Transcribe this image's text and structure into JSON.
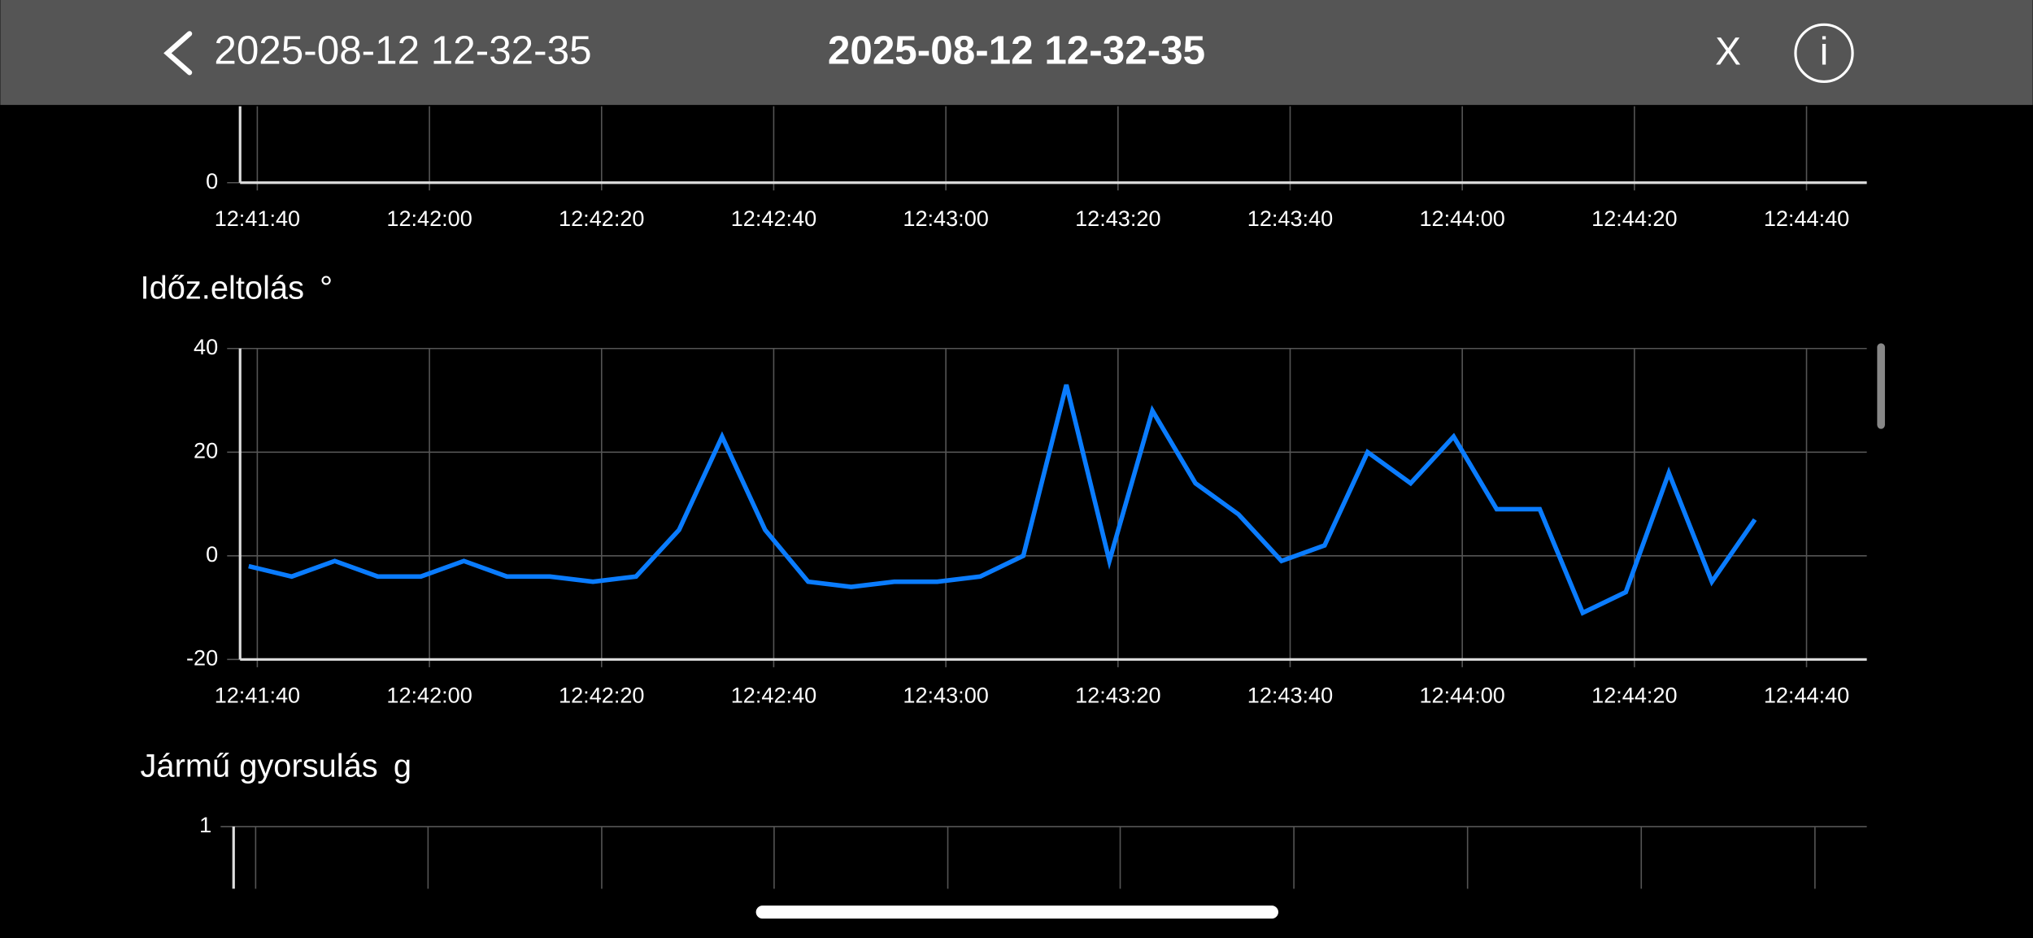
{
  "header": {
    "back_label": "2025-08-12 12-32-35",
    "title": "2025-08-12 12-32-35",
    "close": "X",
    "info": "i"
  },
  "chart_data": [
    {
      "type": "line",
      "xlim": [
        "12:41:38",
        "12:44:47"
      ],
      "xticks": [
        "12:41:40",
        "12:42:00",
        "12:42:20",
        "12:42:40",
        "12:43:00",
        "12:43:20",
        "12:43:40",
        "12:44:00",
        "12:44:20",
        "12:44:40"
      ],
      "yticks": [
        0
      ]
    },
    {
      "type": "line",
      "title": "Időz.eltolás",
      "unit": "°",
      "x": [
        "12:41:39",
        "12:41:44",
        "12:41:49",
        "12:41:54",
        "12:41:59",
        "12:42:04",
        "12:42:09",
        "12:42:14",
        "12:42:19",
        "12:42:24",
        "12:42:29",
        "12:42:34",
        "12:42:39",
        "12:42:44",
        "12:42:49",
        "12:42:54",
        "12:42:59",
        "12:43:04",
        "12:43:09",
        "12:43:14",
        "12:43:19",
        "12:43:24",
        "12:43:29",
        "12:43:34",
        "12:43:39",
        "12:43:44",
        "12:43:49",
        "12:43:54",
        "12:43:59",
        "12:44:04",
        "12:44:09",
        "12:44:14",
        "12:44:19",
        "12:44:24",
        "12:44:29",
        "12:44:34"
      ],
      "series": [
        {
          "color": "#0a7cff",
          "values": [
            -2,
            -4,
            -1,
            -4,
            -4,
            -1,
            -4,
            -4,
            -5,
            -4,
            5,
            23,
            5,
            -5,
            -6,
            -5,
            -5,
            -4,
            0,
            33,
            -1,
            28,
            14,
            8,
            -1,
            2,
            20,
            14,
            23,
            9,
            9,
            -11,
            -7,
            16,
            -5,
            7
          ]
        }
      ],
      "xlim": [
        "12:41:38",
        "12:44:47"
      ],
      "xticks": [
        "12:41:40",
        "12:42:00",
        "12:42:20",
        "12:42:40",
        "12:43:00",
        "12:43:20",
        "12:43:40",
        "12:44:00",
        "12:44:20",
        "12:44:40"
      ],
      "ylim": [
        -20,
        40
      ],
      "yticks": [
        -20,
        0,
        20,
        40
      ],
      "grid": true
    },
    {
      "type": "line",
      "title": "Jármű gyorsulás",
      "unit": "g",
      "yticks": [
        1
      ]
    }
  ]
}
